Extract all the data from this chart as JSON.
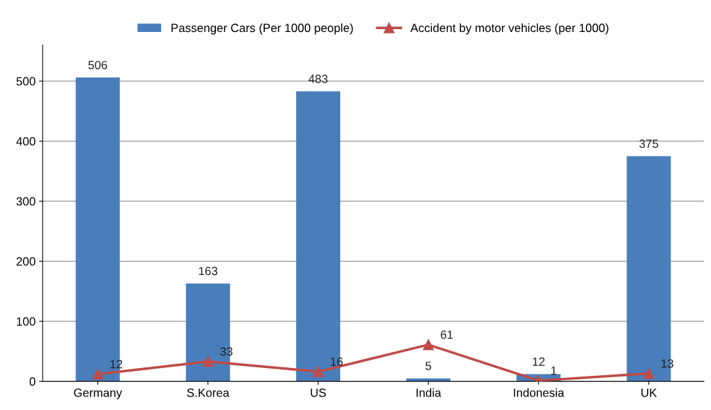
{
  "chart_data": {
    "type": "bar",
    "categories": [
      "Germany",
      "S.Korea",
      "US",
      "India",
      "Indonesia",
      "UK"
    ],
    "series": [
      {
        "name": "Passenger Cars (Per 1000 people)",
        "color": "#4a7ebb",
        "values": [
          506,
          163,
          483,
          5,
          12,
          375
        ]
      },
      {
        "name": "Accident by motor vehicles (per 1000)",
        "type": "line",
        "color": "#be4b48",
        "values": [
          12,
          33,
          16,
          61,
          1,
          13
        ]
      }
    ],
    "ylim": [
      0,
      560
    ],
    "yticks": [
      0,
      100,
      200,
      300,
      400,
      500
    ],
    "grid": "y",
    "legend": "top",
    "marker": "triangle",
    "line_style": "solid",
    "data_labels": true
  }
}
